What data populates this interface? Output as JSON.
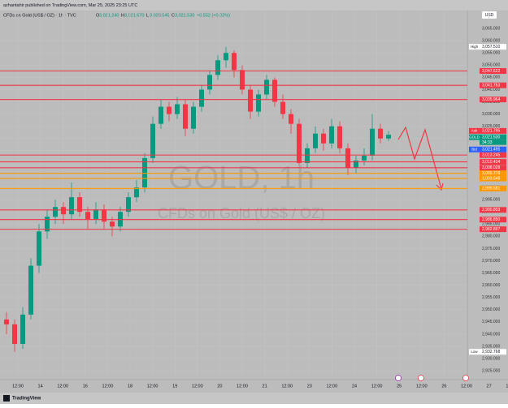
{
  "header": {
    "publisher": "azhantahir published on TradingView.com, Mar 25, 2025 23:25 UTC",
    "symbol": "CFDs on Gold (US$ / OZ) · 1h · TVC",
    "ohlc": [
      {
        "key": "O",
        "label": "3,021.240"
      },
      {
        "key": "H",
        "label": "3,021.670"
      },
      {
        "key": "L",
        "label": "3,020.545"
      },
      {
        "key": "C",
        "label": "3,021.530"
      }
    ],
    "change": "+0.552 (+0.02%)",
    "currency": "USD"
  },
  "footer": "TradingView",
  "chart_data": {
    "type": "candlestick",
    "watermark": {
      "title": "GOLD, 1h",
      "subtitle": "CFDs on Gold (US$ / OZ)"
    },
    "up_color": "#089981",
    "down_color": "#f23645",
    "grid": true,
    "ylim": [
      2922.4,
      3072
    ],
    "yticks": [
      {
        "value": 3065,
        "label": "3,065.000"
      },
      {
        "value": 3060,
        "label": "3,060.000"
      },
      {
        "value": 3055,
        "label": "3,055.000"
      },
      {
        "value": 3050,
        "label": "3,050.000"
      },
      {
        "value": 3045,
        "label": "3,045.000"
      },
      {
        "value": 3040,
        "label": "3,040.000"
      },
      {
        "value": 3035,
        "label": "3,035.000"
      },
      {
        "value": 3030,
        "label": "3,030.000"
      },
      {
        "value": 3025,
        "label": "3,025.000"
      },
      {
        "value": 3020,
        "label": "3,020.000"
      },
      {
        "value": 3015,
        "label": "3,015.000"
      },
      {
        "value": 3010,
        "label": "3,010.000"
      },
      {
        "value": 3005,
        "label": "3,005.000"
      },
      {
        "value": 3000,
        "label": "3,000.000"
      },
      {
        "value": 2995,
        "label": "2,995.000"
      },
      {
        "value": 2990,
        "label": "2,990.000"
      },
      {
        "value": 2985,
        "label": "2,985.000"
      },
      {
        "value": 2980,
        "label": "2,980.000"
      },
      {
        "value": 2975,
        "label": "2,975.000"
      },
      {
        "value": 2970,
        "label": "2,970.000"
      },
      {
        "value": 2965,
        "label": "2,965.000"
      },
      {
        "value": 2960,
        "label": "2,960.000"
      },
      {
        "value": 2955,
        "label": "2,955.000"
      },
      {
        "value": 2950,
        "label": "2,950.000"
      },
      {
        "value": 2945,
        "label": "2,945.000"
      },
      {
        "value": 2940,
        "label": "2,940.000"
      },
      {
        "value": 2935,
        "label": "2,935.000"
      },
      {
        "value": 2930,
        "label": "2,930.000"
      },
      {
        "value": 2925,
        "label": "2,925.000"
      }
    ],
    "x_labels": [
      "12:00",
      "14",
      "12:00",
      "16",
      "12:00",
      "18",
      "12:00",
      "19",
      "12:00",
      "20",
      "12:00",
      "21",
      "12:00",
      "23",
      "12:00",
      "24",
      "12:00",
      "25",
      "12:00",
      "26",
      "12:00",
      "27",
      "12:00"
    ],
    "open": [
      2946,
      2944,
      2936,
      2948,
      2968,
      2982,
      2988,
      2992,
      2989,
      2996,
      2990,
      2987,
      2991,
      2986,
      2984,
      2990,
      2996,
      3000,
      3012,
      3026,
      3033,
      3030,
      3034,
      3024,
      3033,
      3040,
      3046,
      3052,
      3055,
      3048,
      3040,
      3031,
      3038,
      3044,
      3035,
      3030,
      3026,
      3010,
      3016,
      3022,
      3018,
      3025,
      3016,
      3008,
      3011,
      3013,
      3024,
      3020
    ],
    "high": [
      2949,
      2946,
      2951,
      2971,
      2985,
      2991,
      2995,
      2994,
      3002,
      2998,
      2992,
      2994,
      2993,
      2988,
      2992,
      2998,
      3003,
      3014,
      3029,
      3036,
      3035,
      3037,
      3036,
      3035,
      3042,
      3048,
      3054,
      3057.51,
      3056,
      3050,
      3042,
      3040,
      3046,
      3045,
      3038,
      3032,
      3028,
      3018,
      3025,
      3024,
      3028,
      3027,
      3018,
      3013,
      3016,
      3030,
      3026,
      3023
    ],
    "low": [
      2940,
      2932.768,
      2934,
      2946,
      2965,
      2979,
      2985,
      2985,
      2987,
      2988,
      2983,
      2985,
      2983,
      2980,
      2982,
      2988,
      2994,
      2998,
      3010,
      3024,
      3027,
      3028,
      3021,
      3022,
      3031,
      3038,
      3044,
      3049,
      3045,
      3038,
      3028,
      3029,
      3036,
      3033,
      3028,
      3022,
      3006,
      3008,
      3014,
      3015,
      3016,
      3014,
      3005,
      3006,
      3009,
      3011,
      3018,
      3019
    ],
    "close": [
      2944,
      2936,
      2948,
      2968,
      2982,
      2988,
      2992,
      2989,
      2996,
      2990,
      2987,
      2991,
      2986,
      2984,
      2990,
      2996,
      3000,
      3012,
      3026,
      3033,
      3030,
      3034,
      3024,
      3033,
      3040,
      3046,
      3052,
      3055,
      3048,
      3040,
      3031,
      3038,
      3044,
      3035,
      3030,
      3026,
      3010,
      3016,
      3022,
      3018,
      3025,
      3016,
      3008,
      3011,
      3013,
      3024,
      3020,
      3021.53
    ],
    "levels": [
      {
        "value": 3047.622,
        "label": "3,047.622",
        "color": "#f23645"
      },
      {
        "value": 3041.753,
        "label": "3,041.753",
        "color": "#f23645"
      },
      {
        "value": 3035.964,
        "label": "3,035.964",
        "color": "#f23645"
      },
      {
        "value": 3013.245,
        "label": "3,013.245",
        "color": "#f23645"
      },
      {
        "value": 3010.434,
        "label": "3,010.434",
        "color": "#f23645"
      },
      {
        "value": 3008.028,
        "label": "3,008.028",
        "color": "#f23645"
      },
      {
        "value": 3005.778,
        "label": "3,005.778",
        "color": "#ff9800"
      },
      {
        "value": 3003.648,
        "label": "3,003.648",
        "color": "#ff9800"
      },
      {
        "value": 2999.581,
        "label": "2,999.581",
        "color": "#ff9800"
      },
      {
        "value": 2990.803,
        "label": "2,990.803",
        "color": "#f23645"
      },
      {
        "value": 2986.85,
        "label": "2,986.850",
        "color": "#f23645"
      },
      {
        "value": 2982.897,
        "label": "2,982.897",
        "color": "#f23645"
      }
    ],
    "price_tags": [
      {
        "name": "High",
        "value": 3057.51,
        "label": "3,057.510",
        "color": "#ffffff"
      },
      {
        "name": "Ask",
        "value": 3021.795,
        "label": "3,021.795",
        "color": "#f23645"
      },
      {
        "name": "GOLD",
        "value": 3021.53,
        "label": "3,021.530",
        "color": "#089981"
      },
      {
        "name": "Bid",
        "value": 3021.495,
        "label": "3,021.495",
        "color": "#2962ff"
      },
      {
        "name": "Low",
        "value": 2932.768,
        "label": "2,932.768",
        "color": "#ffffff"
      }
    ],
    "countdown": "34:33"
  }
}
